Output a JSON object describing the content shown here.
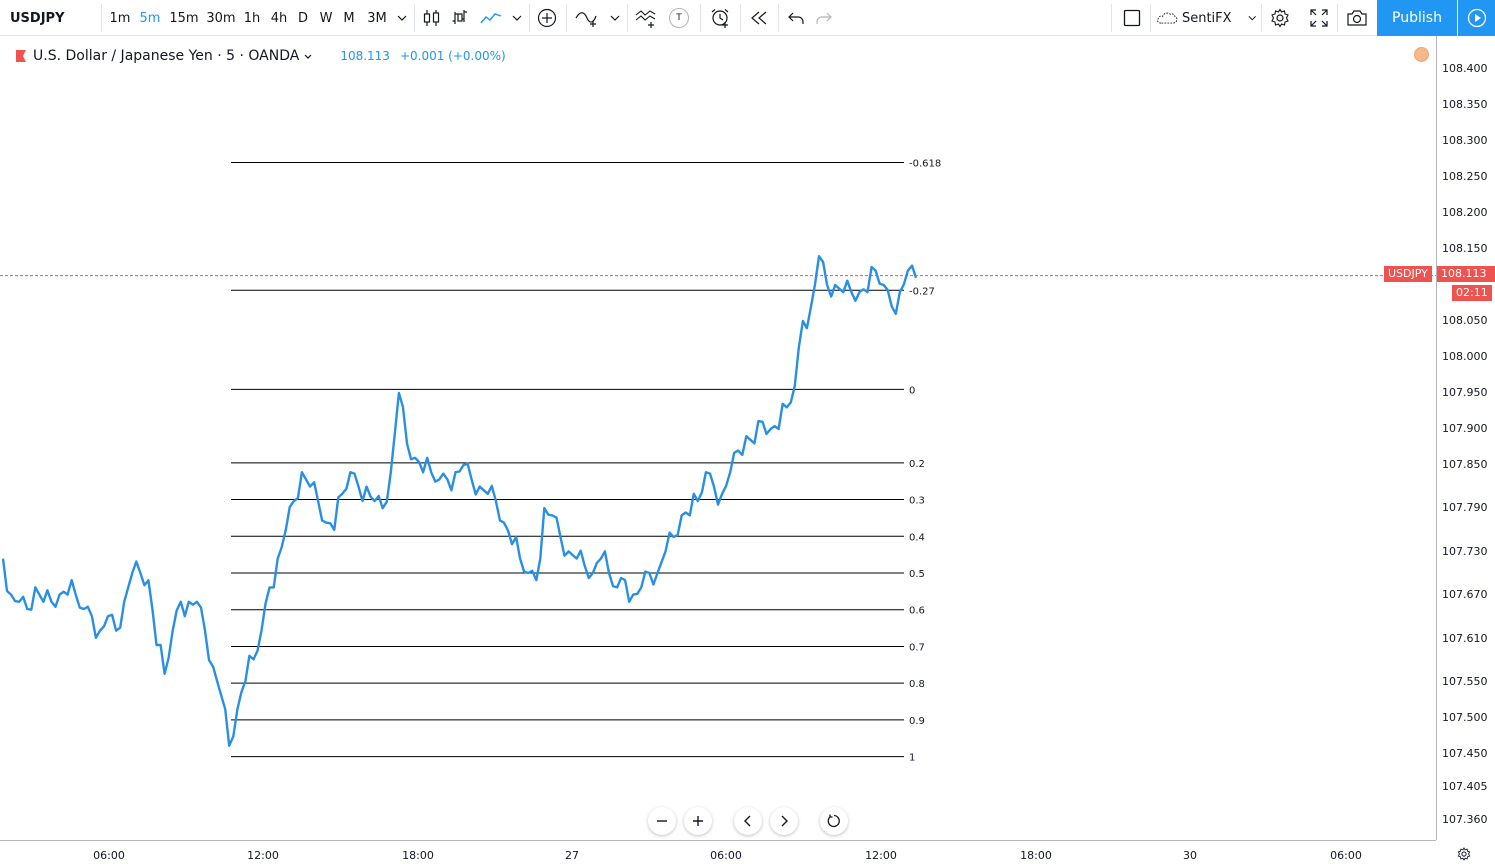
{
  "toolbar": {
    "symbol": "USDJPY",
    "intervals": [
      "1m",
      "5m",
      "15m",
      "30m",
      "1h",
      "4h",
      "D",
      "W",
      "M",
      "3M"
    ],
    "active_interval": "5m",
    "indicator_label": "T",
    "layout_name": "SentiFX",
    "publish_label": "Publish"
  },
  "legend": {
    "title": "U.S. Dollar / Japanese Yen · 5 · OANDA",
    "price": "108.113",
    "change": "+0.001 (+0.00%)"
  },
  "price_axis": {
    "labels": [
      "108.400",
      "108.350",
      "108.300",
      "108.250",
      "108.200",
      "108.150",
      "108.100",
      "108.050",
      "108.000",
      "107.950",
      "107.900",
      "107.850",
      "107.790",
      "107.730",
      "107.670",
      "107.610",
      "107.550",
      "107.500",
      "107.450",
      "107.405",
      "107.360"
    ],
    "current_symbol_badge": "USDJPY",
    "current_price_badge": "108.113",
    "countdown_badge": "02:11"
  },
  "time_axis": {
    "labels": [
      "06:00",
      "12:00",
      "18:00",
      "27",
      "06:00",
      "12:00",
      "18:00",
      "30",
      "06:00"
    ]
  },
  "fib_levels": [
    {
      "ratio": -0.618,
      "label": "-0.618"
    },
    {
      "ratio": -0.27,
      "label": "-0.27"
    },
    {
      "ratio": 0,
      "label": "0"
    },
    {
      "ratio": 0.2,
      "label": "0.2"
    },
    {
      "ratio": 0.3,
      "label": "0.3"
    },
    {
      "ratio": 0.4,
      "label": "0.4"
    },
    {
      "ratio": 0.5,
      "label": "0.5"
    },
    {
      "ratio": 0.6,
      "label": "0.6"
    },
    {
      "ratio": 0.7,
      "label": "0.7"
    },
    {
      "ratio": 0.8,
      "label": "0.8"
    },
    {
      "ratio": 0.9,
      "label": "0.9"
    },
    {
      "ratio": 1,
      "label": "1"
    }
  ],
  "colors": {
    "accent": "#2196f3",
    "line": "#2a8fe3",
    "current_price": "#ef5350"
  },
  "chart_data": {
    "type": "line",
    "title": "U.S. Dollar / Japanese Yen · 5 · OANDA",
    "xlabel": "",
    "ylabel": "",
    "series": [
      {
        "values": [
          107.72,
          107.67,
          107.66,
          107.65,
          107.68,
          107.66,
          107.66,
          107.67,
          107.67,
          107.67,
          107.65,
          107.64,
          107.62,
          107.64,
          107.62,
          107.66,
          107.7,
          107.7,
          107.69,
          107.6,
          107.56,
          107.62,
          107.66,
          107.66,
          107.66,
          107.62,
          107.57,
          107.53,
          107.46,
          107.51,
          107.55,
          107.58,
          107.62,
          107.68,
          107.72,
          107.76,
          107.8,
          107.84,
          107.82,
          107.8,
          107.77,
          107.76,
          107.81,
          107.84,
          107.82,
          107.82,
          107.8,
          107.79,
          107.84,
          107.95,
          107.88,
          107.86,
          107.84,
          107.84,
          107.83,
          107.83,
          107.84,
          107.85,
          107.83,
          107.82,
          107.81,
          107.8,
          107.77,
          107.74,
          107.72,
          107.7,
          107.69,
          107.79,
          107.78,
          107.75,
          107.73,
          107.72,
          107.71,
          107.7,
          107.72,
          107.7,
          107.68,
          107.69,
          107.67,
          107.68,
          107.7,
          107.7,
          107.73,
          107.75,
          107.78,
          107.78,
          107.8,
          107.84,
          107.82,
          107.81,
          107.84,
          107.87,
          107.89,
          107.88,
          107.91,
          107.9,
          107.9,
          107.93,
          107.96,
          108.05,
          108.07,
          108.14,
          108.1,
          108.1,
          108.09,
          108.09,
          108.09,
          108.09,
          108.12,
          108.1,
          108.07,
          108.09,
          108.12,
          108.11
        ],
        "note_range": "range shown approx 107.43 to 108.15"
      }
    ],
    "current_price": 108.113,
    "ylim": [
      107.33,
      108.43
    ],
    "grid": false
  }
}
